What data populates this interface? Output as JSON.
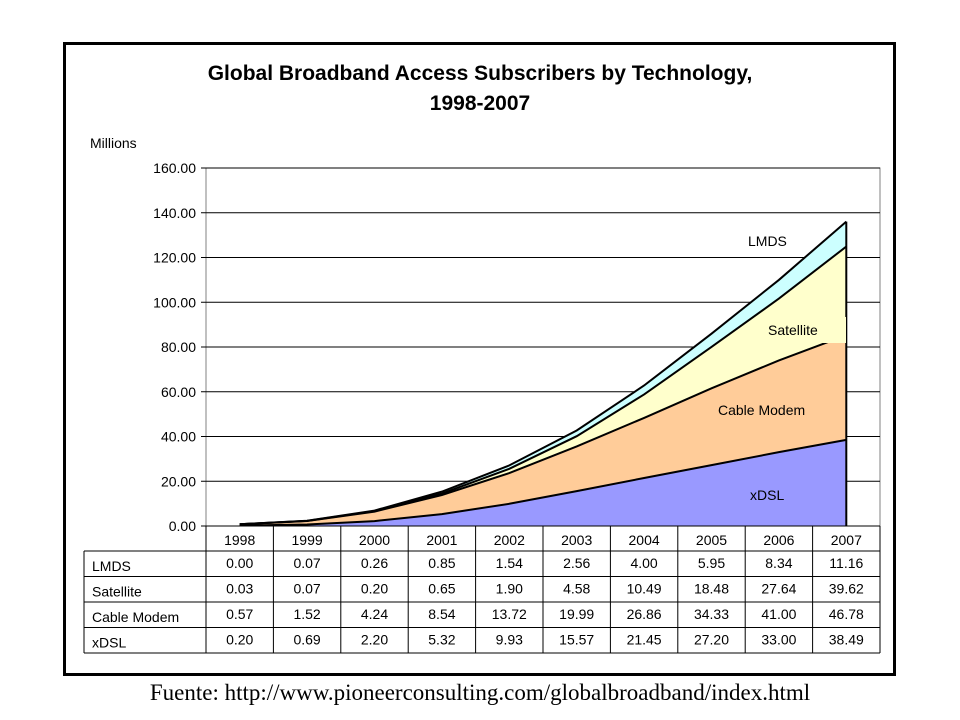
{
  "chart_data": {
    "type": "area",
    "stacked": true,
    "title": "Global Broadband Access Subscribers by Technology,",
    "subtitle": "1998-2007",
    "ylabel": "Millions",
    "xlabel": "",
    "ylim": [
      0,
      160
    ],
    "yticks": [
      "0.00",
      "20.00",
      "40.00",
      "60.00",
      "80.00",
      "100.00",
      "120.00",
      "140.00",
      "160.00"
    ],
    "grid": true,
    "categories": [
      "1998",
      "1999",
      "2000",
      "2001",
      "2002",
      "2003",
      "2004",
      "2005",
      "2006",
      "2007"
    ],
    "series": [
      {
        "name": "xDSL",
        "color": "#9999ff",
        "values": [
          0.2,
          0.69,
          2.2,
          5.32,
          9.93,
          15.57,
          21.45,
          27.2,
          33.0,
          38.49
        ],
        "labels": [
          "0.20",
          "0.69",
          "2.20",
          "5.32",
          "9.93",
          "15.57",
          "21.45",
          "27.20",
          "33.00",
          "38.49"
        ]
      },
      {
        "name": "Cable Modem",
        "color": "#ffcc99",
        "values": [
          0.57,
          1.52,
          4.24,
          8.54,
          13.72,
          19.99,
          26.86,
          34.33,
          41.0,
          46.78
        ],
        "labels": [
          "0.57",
          "1.52",
          "4.24",
          "8.54",
          "13.72",
          "19.99",
          "26.86",
          "34.33",
          "41.00",
          "46.78"
        ]
      },
      {
        "name": "Satellite",
        "color": "#ffffcc",
        "values": [
          0.03,
          0.07,
          0.2,
          0.65,
          1.9,
          4.58,
          10.49,
          18.48,
          27.64,
          39.62
        ],
        "labels": [
          "0.03",
          "0.07",
          "0.20",
          "0.65",
          "1.90",
          "4.58",
          "10.49",
          "18.48",
          "27.64",
          "39.62"
        ]
      },
      {
        "name": "LMDS",
        "color": "#ccffff",
        "values": [
          0.0,
          0.07,
          0.26,
          0.85,
          1.54,
          2.56,
          4.0,
          5.95,
          8.34,
          11.16
        ],
        "labels": [
          "0.00",
          "0.07",
          "0.26",
          "0.85",
          "1.54",
          "2.56",
          "4.00",
          "5.95",
          "8.34",
          "11.16"
        ]
      }
    ],
    "table_row_order": [
      "LMDS",
      "Satellite",
      "Cable Modem",
      "xDSL"
    ]
  },
  "source": "Fuente: http://www.pioneerconsulting.com/globalbroadband/index.html"
}
